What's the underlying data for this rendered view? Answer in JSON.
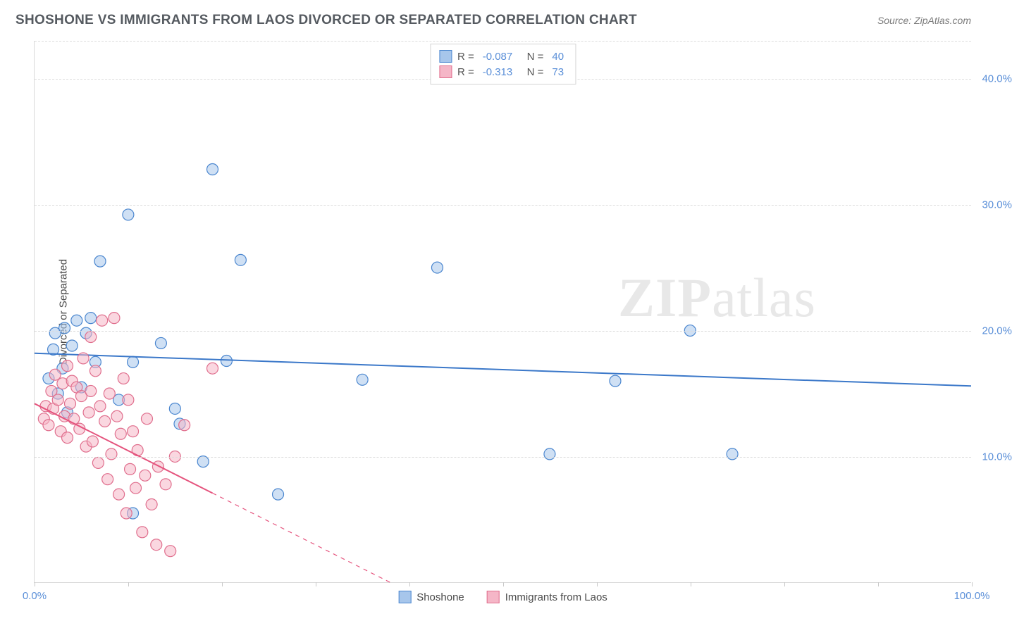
{
  "title": "SHOSHONE VS IMMIGRANTS FROM LAOS DIVORCED OR SEPARATED CORRELATION CHART",
  "source": "Source: ZipAtlas.com",
  "watermark_a": "ZIP",
  "watermark_b": "atlas",
  "y_axis_title": "Divorced or Separated",
  "chart": {
    "type": "scatter",
    "background_color": "#ffffff",
    "grid_color": "#dcdcdc",
    "xlim": [
      0,
      100
    ],
    "ylim": [
      0,
      43
    ],
    "x_ticks": [
      0,
      10,
      20,
      30,
      40,
      50,
      60,
      70,
      80,
      90,
      100
    ],
    "x_tick_labels": {
      "0": "0.0%",
      "100": "100.0%"
    },
    "y_gridlines": [
      10,
      20,
      30,
      40,
      43
    ],
    "y_tick_labels": {
      "10": "10.0%",
      "20": "20.0%",
      "30": "30.0%",
      "40": "40.0%"
    },
    "label_color": "#5a8fd8",
    "label_fontsize": 15,
    "marker_radius": 8,
    "marker_opacity": 0.55,
    "series": [
      {
        "name": "Shoshone",
        "color": "#6ea3df",
        "stroke": "#4a86cf",
        "fill": "#a7c6eb",
        "r_value": "-0.087",
        "n_value": "40",
        "trend": {
          "x1": 0,
          "y1": 18.2,
          "x2": 100,
          "y2": 15.6,
          "solid_until_x": 100,
          "line_color": "#3b78c9",
          "width": 2
        },
        "points": [
          [
            1.5,
            16.2
          ],
          [
            2.0,
            18.5
          ],
          [
            2.2,
            19.8
          ],
          [
            2.5,
            15.0
          ],
          [
            3.0,
            17.0
          ],
          [
            3.2,
            20.2
          ],
          [
            3.5,
            13.5
          ],
          [
            4.0,
            18.8
          ],
          [
            4.5,
            20.8
          ],
          [
            5.0,
            15.5
          ],
          [
            5.5,
            19.8
          ],
          [
            6.0,
            21.0
          ],
          [
            6.5,
            17.5
          ],
          [
            7.0,
            25.5
          ],
          [
            9.0,
            14.5
          ],
          [
            10.0,
            29.2
          ],
          [
            10.5,
            5.5
          ],
          [
            10.5,
            17.5
          ],
          [
            13.5,
            19.0
          ],
          [
            15.0,
            13.8
          ],
          [
            15.5,
            12.6
          ],
          [
            18.0,
            9.6
          ],
          [
            19.0,
            32.8
          ],
          [
            20.5,
            17.6
          ],
          [
            22.0,
            25.6
          ],
          [
            26.0,
            7.0
          ],
          [
            43.0,
            25.0
          ],
          [
            35.0,
            16.1
          ],
          [
            62.0,
            16.0
          ],
          [
            70.0,
            20.0
          ],
          [
            74.5,
            10.2
          ],
          [
            55.0,
            10.2
          ]
        ]
      },
      {
        "name": "Immigrants from Laos",
        "color": "#eb8fa8",
        "stroke": "#e06e8d",
        "fill": "#f5b6c7",
        "r_value": "-0.313",
        "n_value": "73",
        "trend": {
          "x1": 0,
          "y1": 14.2,
          "x2": 38,
          "y2": 0,
          "solid_until_x": 19,
          "line_color": "#e5537d",
          "width": 2
        },
        "points": [
          [
            1.0,
            13.0
          ],
          [
            1.2,
            14.0
          ],
          [
            1.5,
            12.5
          ],
          [
            1.8,
            15.2
          ],
          [
            2.0,
            13.8
          ],
          [
            2.2,
            16.5
          ],
          [
            2.5,
            14.5
          ],
          [
            2.8,
            12.0
          ],
          [
            3.0,
            15.8
          ],
          [
            3.2,
            13.2
          ],
          [
            3.5,
            11.5
          ],
          [
            3.5,
            17.2
          ],
          [
            3.8,
            14.2
          ],
          [
            4.0,
            16.0
          ],
          [
            4.2,
            13.0
          ],
          [
            4.5,
            15.5
          ],
          [
            4.8,
            12.2
          ],
          [
            5.0,
            14.8
          ],
          [
            5.2,
            17.8
          ],
          [
            5.5,
            10.8
          ],
          [
            5.8,
            13.5
          ],
          [
            6.0,
            19.5
          ],
          [
            6.0,
            15.2
          ],
          [
            6.2,
            11.2
          ],
          [
            6.5,
            16.8
          ],
          [
            6.8,
            9.5
          ],
          [
            7.0,
            14.0
          ],
          [
            7.2,
            20.8
          ],
          [
            7.5,
            12.8
          ],
          [
            7.8,
            8.2
          ],
          [
            8.0,
            15.0
          ],
          [
            8.2,
            10.2
          ],
          [
            8.5,
            21.0
          ],
          [
            8.8,
            13.2
          ],
          [
            9.0,
            7.0
          ],
          [
            9.2,
            11.8
          ],
          [
            9.5,
            16.2
          ],
          [
            9.8,
            5.5
          ],
          [
            10.0,
            14.5
          ],
          [
            10.2,
            9.0
          ],
          [
            10.5,
            12.0
          ],
          [
            10.8,
            7.5
          ],
          [
            11.0,
            10.5
          ],
          [
            11.5,
            4.0
          ],
          [
            11.8,
            8.5
          ],
          [
            12.0,
            13.0
          ],
          [
            12.5,
            6.2
          ],
          [
            13.0,
            3.0
          ],
          [
            13.2,
            9.2
          ],
          [
            14.0,
            7.8
          ],
          [
            14.5,
            2.5
          ],
          [
            15.0,
            10.0
          ],
          [
            16.0,
            12.5
          ],
          [
            19.0,
            17.0
          ]
        ]
      }
    ],
    "bottom_legend": [
      {
        "label": "Shoshone",
        "fill": "#a7c6eb",
        "stroke": "#4a86cf"
      },
      {
        "label": "Immigrants from Laos",
        "fill": "#f5b6c7",
        "stroke": "#e06e8d"
      }
    ]
  }
}
